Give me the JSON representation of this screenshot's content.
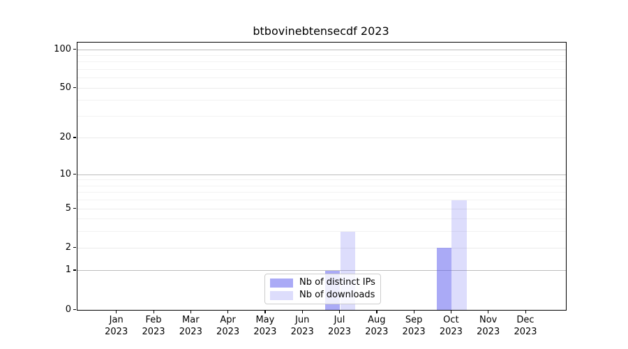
{
  "chart_data": {
    "type": "bar",
    "title": "btbovinebtensecdf 2023",
    "year": "2023",
    "categories": [
      "Jan",
      "Feb",
      "Mar",
      "Apr",
      "May",
      "Jun",
      "Jul",
      "Aug",
      "Sep",
      "Oct",
      "Nov",
      "Dec"
    ],
    "series": [
      {
        "name": "Nb of distinct IPs",
        "color": "rgba(85,85,238,0.5)",
        "values": [
          0,
          0,
          0,
          0,
          0,
          0,
          1,
          0,
          0,
          2,
          0,
          0
        ]
      },
      {
        "name": "Nb of downloads",
        "color": "rgba(85,85,238,0.2)",
        "values": [
          0,
          0,
          0,
          0,
          0,
          0,
          3,
          0,
          0,
          6,
          0,
          0
        ]
      }
    ],
    "xlabel": "",
    "ylabel": "",
    "yscale": "log1p",
    "ylim": [
      0,
      113.4
    ],
    "yticks": [
      0,
      1,
      2,
      5,
      10,
      20,
      50,
      100
    ],
    "ytick_labels": [
      "0",
      "1",
      "2",
      "5",
      "10",
      "20",
      "50",
      "100"
    ],
    "minor_gridline_values": [
      3,
      4,
      6,
      7,
      8,
      9,
      30,
      40,
      60,
      70,
      80,
      90
    ],
    "decade_gridline_values": [
      1,
      10,
      100
    ],
    "grid": true,
    "legend_position": "lower center"
  }
}
